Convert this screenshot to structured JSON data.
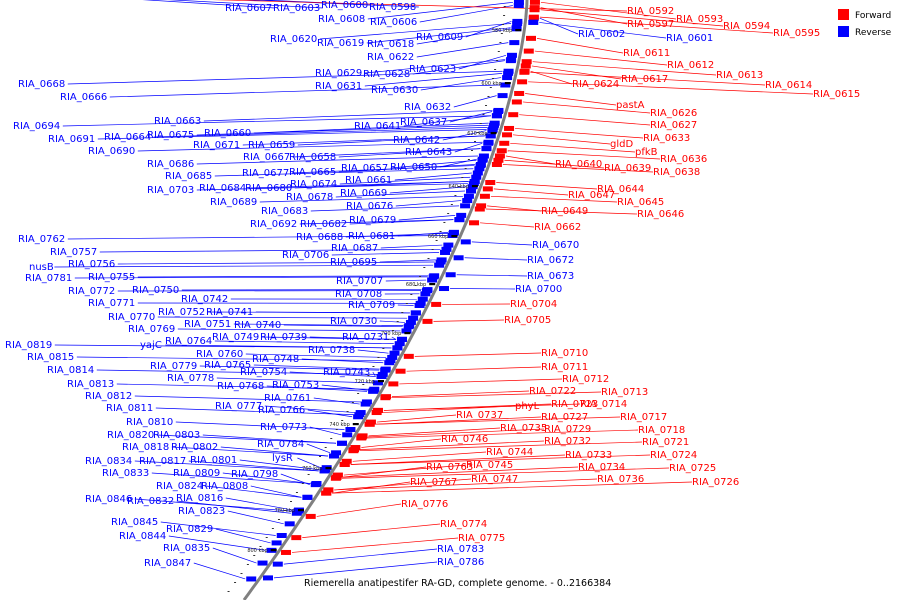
{
  "colors": {
    "forward": "#ff0000",
    "reverse": "#0000ff",
    "backbone": "#808080",
    "tick": "#000000"
  },
  "legend": {
    "forward": "Forward",
    "reverse": "Reverse"
  },
  "title": "Riemerella anatipestifer RA-GD, complete genome. - 0..2166384",
  "ticks": [
    "580 kbp",
    "600 kbp",
    "620 kbp",
    "640 kbp",
    "660 kbp",
    "680 kbp",
    "700 kbp",
    "720 kbp",
    "740 kbp",
    "760 kbp",
    "780 kbp",
    "800 kbp"
  ],
  "genes": {
    "reverse": [
      "RIA_0598",
      "RIA_0600",
      "RIA_0603",
      "RIA_0607",
      "RIA_0606",
      "RIA_0608",
      "RIA_0602",
      "RIA_0601",
      "RIA_0609",
      "RIA_0618",
      "RIA_0619",
      "RIA_0620",
      "RIA_0622",
      "RIA_0623",
      "RIA_0628",
      "RIA_0629",
      "RIA_0630",
      "RIA_0631",
      "RIA_0632",
      "RIA_0637",
      "RIA_0641",
      "RIA_0642",
      "RIA_0643",
      "RIA_0660",
      "RIA_0663",
      "RIA_0664",
      "RIA_0666",
      "RIA_0668",
      "RIA_0675",
      "RIA_0659",
      "RIA_0671",
      "RIA_0691",
      "RIA_0694",
      "RIA_0690",
      "RIA_0658",
      "RIA_0667",
      "RIA_0650",
      "RIA_0657",
      "RIA_0665",
      "RIA_0677",
      "RIA_0686",
      "RIA_0661",
      "RIA_0674",
      "RIA_0685",
      "RIA_0680",
      "RIA_0684",
      "RIA_0669",
      "RIA_0678",
      "RIA_0703",
      "RIA_0676",
      "RIA_0689",
      "RIA_0683",
      "RIA_0679",
      "RIA_0682",
      "RIA_0692",
      "RIA_0681",
      "RIA_0688",
      "RIA_0687",
      "RIA_0706",
      "RIA_0695",
      "RIA_0670",
      "RIA_0672",
      "RIA_0673",
      "RIA_0700",
      "RIA_0707",
      "RIA_0708",
      "RIA_0709",
      "RIA_0762",
      "RIA_0757",
      "RIA_0756",
      "nusB",
      "RIA_0755",
      "RIA_0781",
      "RIA_0772",
      "RIA_0750",
      "RIA_0742",
      "RIA_0771",
      "RIA_0752",
      "RIA_0741",
      "RIA_0770",
      "RIA_0751",
      "RIA_0740",
      "RIA_0730",
      "RIA_0769",
      "RIA_0749",
      "RIA_0739",
      "RIA_0731",
      "RIA_0819",
      "yajC",
      "RIA_0764",
      "RIA_0738",
      "RIA_0815",
      "RIA_0760",
      "RIA_0748",
      "RIA_0814",
      "RIA_0779",
      "RIA_0765",
      "RIA_0754",
      "RIA_0743",
      "RIA_0813",
      "RIA_0778",
      "RIA_0768",
      "RIA_0753",
      "RIA_0812",
      "RIA_0761",
      "RIA_0811",
      "RIA_0777",
      "RIA_0766",
      "RIA_0810",
      "RIA_0773",
      "RIA_0820",
      "RIA_0803",
      "RIA_0818",
      "RIA_0802",
      "RIA_0784",
      "RIA_0817",
      "RIA_0801",
      "lysR",
      "RIA_0834",
      "RIA_0833",
      "RIA_0809",
      "RIA_0798",
      "RIA_0824",
      "RIA_0808",
      "RIA_0846",
      "RIA_0832",
      "RIA_0816",
      "RIA_0823",
      "RIA_0845",
      "RIA_0829",
      "RIA_0844",
      "RIA_0835",
      "RIA_0847",
      "RIA_0783",
      "RIA_0786"
    ],
    "forward": [
      "RIA_0592",
      "RIA_0597",
      "RIA_0593",
      "RIA_0594",
      "RIA_0595",
      "RIA_0611",
      "RIA_0612",
      "RIA_0613",
      "RIA_0614",
      "RIA_0615",
      "RIA_0617",
      "RIA_0624",
      "pastA",
      "RIA_0626",
      "RIA_0627",
      "RIA_0633",
      "gldD",
      "pfkB",
      "RIA_0636",
      "RIA_0640",
      "RIA_0639",
      "RIA_0638",
      "RIA_0644",
      "RIA_0647",
      "RIA_0645",
      "RIA_0646",
      "RIA_0649",
      "RIA_0662",
      "RIA_0704",
      "RIA_0705",
      "RIA_0710",
      "RIA_0711",
      "RIA_0712",
      "RIA_0713",
      "RIA_0722",
      "RIA_0714",
      "phyL",
      "RIA_0723",
      "RIA_0717",
      "RIA_0727",
      "RIA_0718",
      "RIA_0737",
      "RIA_0735",
      "RIA_0729",
      "RIA_0721",
      "RIA_0732",
      "RIA_0746",
      "RIA_0744",
      "RIA_0733",
      "RIA_0724",
      "RIA_0734",
      "RIA_0745",
      "RIA_0725",
      "RIA_0763",
      "RIA_0747",
      "RIA_0736",
      "RIA_0726",
      "RIA_0767",
      "RIA_0776",
      "RIA_0774",
      "RIA_0775"
    ]
  }
}
